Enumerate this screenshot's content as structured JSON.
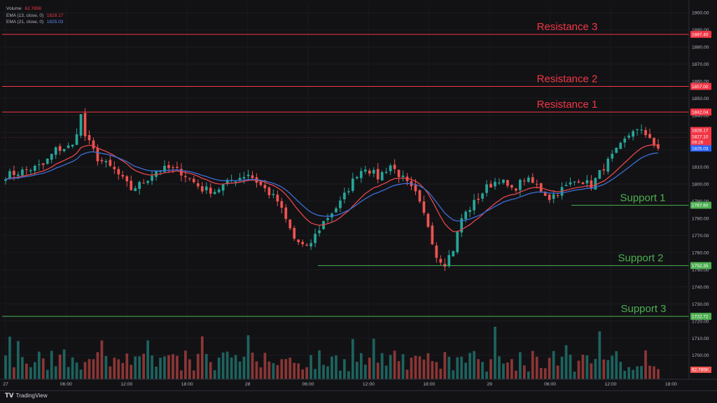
{
  "legend": {
    "volume_label": "Volume",
    "volume_value": "62.785K",
    "ema1_label": "EMA (13, close, 0)",
    "ema1_value": "1828.17",
    "ema2_label": "EMA (21, close, 0)",
    "ema2_value": "1825.03"
  },
  "branding": {
    "name": "TradingView"
  },
  "colors": {
    "background": "#121215",
    "up": "#26a69a",
    "down": "#ef5350",
    "ema13": "#e8474c",
    "ema21": "#3d6fd8",
    "resistance": "#f23645",
    "support": "#4caf50",
    "axis_text": "#b2b5be",
    "price_tag_blue": "#2962ff"
  },
  "chart_data": {
    "type": "candlestick",
    "y_axis": {
      "range": [
        1686,
        1905
      ],
      "ticks": [
        "1900.00",
        "1890.00",
        "1880.00",
        "1870.00",
        "1860.00",
        "1850.00",
        "1840.00",
        "1830.00",
        "1820.00",
        "1810.00",
        "1800.00",
        "1790.00",
        "1780.00",
        "1770.00",
        "1760.00",
        "1750.00",
        "1740.00",
        "1730.00",
        "1720.00",
        "1710.00",
        "1700.00"
      ]
    },
    "x_axis": {
      "ticks": [
        "27",
        "06:00",
        "12:00",
        "18:00",
        "28",
        "06:00",
        "12:00",
        "18:00",
        "29",
        "06:00",
        "12:00",
        "18:00"
      ]
    },
    "levels": [
      {
        "label": "Resistance 3",
        "price": 1887.4,
        "tag": "1887.40",
        "kind": "resistance"
      },
      {
        "label": "Resistance 2",
        "price": 1857.0,
        "tag": "1857.00",
        "kind": "resistance"
      },
      {
        "label": "Resistance 1",
        "price": 1842.04,
        "tag": "1842.04",
        "kind": "resistance"
      },
      {
        "label": "Support 1",
        "price": 1787.6,
        "tag": "1787.60",
        "kind": "support"
      },
      {
        "label": "Support 2",
        "price": 1752.35,
        "tag": "1752.35",
        "kind": "support"
      },
      {
        "label": "Support 3",
        "price": 1722.72,
        "tag": "1722.72",
        "kind": "support"
      }
    ],
    "price_tags": [
      {
        "text": "1828.17",
        "color": "#f23645"
      },
      {
        "text": "1827.10",
        "color": "#f23645"
      },
      {
        "text": "09:26",
        "color": "#f23645"
      },
      {
        "text": "1825.03",
        "color": "#2962ff"
      }
    ],
    "volume_tag": "62.785K",
    "series": [
      {
        "name": "EMA (13, close, 0)",
        "style": "line"
      },
      {
        "name": "EMA (21, close, 0)",
        "style": "line"
      }
    ],
    "price_path": [
      [
        0,
        1805
      ],
      [
        5,
        1808
      ],
      [
        9,
        1811
      ],
      [
        12,
        1820
      ],
      [
        16,
        1822
      ],
      [
        18,
        1840
      ],
      [
        19,
        1828
      ],
      [
        22,
        1815
      ],
      [
        26,
        1808
      ],
      [
        30,
        1797
      ],
      [
        33,
        1801
      ],
      [
        36,
        1808
      ],
      [
        39,
        1809
      ],
      [
        42,
        1807
      ],
      [
        47,
        1797
      ],
      [
        50,
        1796
      ],
      [
        54,
        1802
      ],
      [
        58,
        1806
      ],
      [
        62,
        1797
      ],
      [
        65,
        1790
      ],
      [
        69,
        1768
      ],
      [
        72,
        1762
      ],
      [
        76,
        1778
      ],
      [
        80,
        1789
      ],
      [
        84,
        1806
      ],
      [
        86,
        1810
      ],
      [
        89,
        1804
      ],
      [
        92,
        1811
      ],
      [
        95,
        1803
      ],
      [
        98,
        1794
      ],
      [
        101,
        1776
      ],
      [
        103,
        1758
      ],
      [
        105,
        1754
      ],
      [
        107,
        1762
      ],
      [
        109,
        1780
      ],
      [
        112,
        1789
      ],
      [
        115,
        1798
      ],
      [
        118,
        1803
      ],
      [
        121,
        1796
      ],
      [
        124,
        1803
      ],
      [
        127,
        1799
      ],
      [
        130,
        1792
      ],
      [
        133,
        1797
      ],
      [
        137,
        1803
      ],
      [
        140,
        1799
      ],
      [
        143,
        1810
      ],
      [
        147,
        1822
      ],
      [
        150,
        1832
      ],
      [
        154,
        1828
      ],
      [
        156,
        1819
      ]
    ]
  }
}
